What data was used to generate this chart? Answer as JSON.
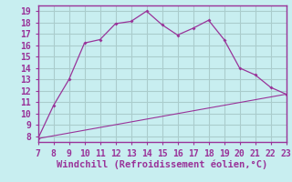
{
  "xlabel": "Windchill (Refroidissement éolien,°C)",
  "line1_x": [
    7,
    8,
    9,
    10,
    11,
    12,
    13,
    14,
    15,
    16,
    17,
    18,
    19,
    20,
    21,
    22,
    23
  ],
  "line1_y": [
    7.8,
    10.7,
    13.0,
    16.2,
    16.5,
    17.9,
    18.1,
    19.0,
    17.8,
    16.9,
    17.5,
    18.2,
    16.5,
    14.0,
    13.4,
    12.3,
    11.7
  ],
  "line2_x": [
    7,
    23
  ],
  "line2_y": [
    7.8,
    11.7
  ],
  "line_color": "#993399",
  "bg_color": "#c8eef0",
  "grid_color": "#aacccc",
  "tick_color": "#993399",
  "spine_color": "#993399",
  "xlim": [
    7,
    23
  ],
  "ylim": [
    7.5,
    19.5
  ],
  "yticks": [
    8,
    9,
    10,
    11,
    12,
    13,
    14,
    15,
    16,
    17,
    18,
    19
  ],
  "xticks": [
    7,
    8,
    9,
    10,
    11,
    12,
    13,
    14,
    15,
    16,
    17,
    18,
    19,
    20,
    21,
    22,
    23
  ],
  "tick_fontsize": 7.0,
  "xlabel_fontsize": 7.5
}
